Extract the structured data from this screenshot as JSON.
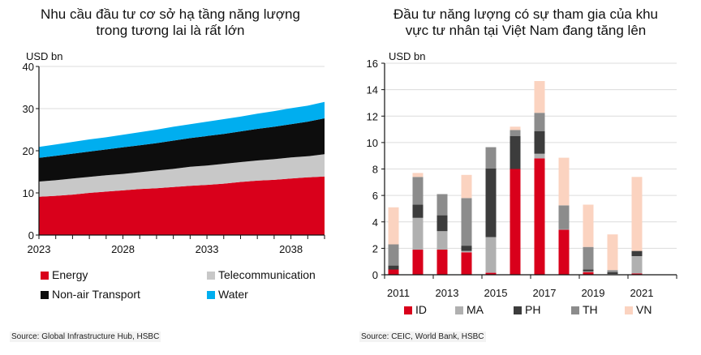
{
  "left": {
    "title_line1": "Nhu cầu đầu tư cơ sở hạ tầng năng lượng",
    "title_line2": "trong tương lai là rất lớn",
    "source": "Source: Global Infrastructure Hub, HSBC"
  },
  "right": {
    "title_line1": "Đầu tư năng lượng có sự tham gia của khu",
    "title_line2": "vực tư nhân tại Việt Nam đang tăng lên",
    "source": "Source: CEIC, World Bank, HSBC"
  },
  "chart_data": [
    {
      "type": "area",
      "stacked": true,
      "title": "Nhu cầu đầu tư cơ sở hạ tầng năng lượng trong tương lai là rất lớn",
      "ylabel": "USD bn",
      "ylim": [
        0,
        40
      ],
      "yticks": [
        "0",
        "10",
        "20",
        "30",
        "40"
      ],
      "xlim": [
        2023,
        2040
      ],
      "xticks": [
        "2023",
        "2028",
        "2033",
        "2038"
      ],
      "grid": true,
      "legend_position": "bottom",
      "x": [
        2023,
        2024,
        2025,
        2026,
        2027,
        2028,
        2029,
        2030,
        2031,
        2032,
        2033,
        2034,
        2035,
        2036,
        2037,
        2038,
        2039,
        2040
      ],
      "series": [
        {
          "name": "Energy",
          "color": "#d9001b",
          "values": [
            9.1,
            9.3,
            9.6,
            10.0,
            10.3,
            10.6,
            10.9,
            11.1,
            11.4,
            11.7,
            11.9,
            12.2,
            12.6,
            12.9,
            13.1,
            13.4,
            13.7,
            13.9
          ]
        },
        {
          "name": "Telecommunication",
          "color": "#c8c8c8",
          "values": [
            3.6,
            3.7,
            3.8,
            3.8,
            3.9,
            3.9,
            4.0,
            4.2,
            4.3,
            4.5,
            4.6,
            4.7,
            4.7,
            4.8,
            4.9,
            5.0,
            5.0,
            5.3
          ]
        },
        {
          "name": "Non-air Transport",
          "color": "#0d0d0d",
          "values": [
            5.6,
            5.8,
            5.9,
            6.0,
            6.1,
            6.3,
            6.4,
            6.5,
            6.7,
            6.8,
            7.0,
            7.1,
            7.3,
            7.5,
            7.7,
            7.9,
            8.2,
            8.5
          ]
        },
        {
          "name": "Water",
          "color": "#00aeef",
          "values": [
            2.6,
            2.7,
            2.8,
            2.9,
            2.9,
            3.0,
            3.1,
            3.2,
            3.3,
            3.3,
            3.4,
            3.5,
            3.5,
            3.6,
            3.7,
            3.8,
            3.8,
            3.9
          ]
        }
      ]
    },
    {
      "type": "bar",
      "stacked": true,
      "title": "Đầu tư năng lượng có sự tham gia của khu vực tư nhân tại Việt Nam đang tăng lên",
      "ylabel": "USD bn",
      "ylim": [
        0,
        16
      ],
      "yticks": [
        "0",
        "2",
        "4",
        "6",
        "8",
        "10",
        "12",
        "14",
        "16"
      ],
      "categories": [
        "2011",
        "2012",
        "2013",
        "2014",
        "2015",
        "2016",
        "2017",
        "2018",
        "2019",
        "2020",
        "2021",
        "2022"
      ],
      "xtick_labels": [
        "2011",
        "2013",
        "2015",
        "2017",
        "2019",
        "2021"
      ],
      "grid": true,
      "legend_position": "bottom",
      "series": [
        {
          "name": "ID",
          "color": "#d9001b",
          "values": [
            0.4,
            1.9,
            1.9,
            1.7,
            0.15,
            8.0,
            8.8,
            3.4,
            0.2,
            0.0,
            0.1,
            0.0
          ]
        },
        {
          "name": "MA",
          "color": "#b0b0b0",
          "values": [
            0.0,
            2.4,
            1.4,
            0.1,
            2.7,
            0.0,
            0.35,
            0.05,
            0.05,
            0.05,
            1.3,
            0.0
          ]
        },
        {
          "name": "PH",
          "color": "#3c3c3c",
          "values": [
            0.3,
            1.0,
            1.2,
            0.4,
            5.2,
            2.5,
            1.7,
            0.0,
            0.15,
            0.15,
            0.4,
            0.0
          ]
        },
        {
          "name": "TH",
          "color": "#8c8c8c",
          "values": [
            1.6,
            2.1,
            1.6,
            3.6,
            1.6,
            0.45,
            1.4,
            1.8,
            1.7,
            0.15,
            0.0,
            0.0
          ]
        },
        {
          "name": "VN",
          "color": "#fbd3c0",
          "values": [
            2.8,
            0.3,
            0.0,
            1.75,
            0.0,
            0.25,
            2.4,
            3.6,
            3.2,
            2.7,
            5.6,
            0.0
          ]
        }
      ]
    }
  ]
}
